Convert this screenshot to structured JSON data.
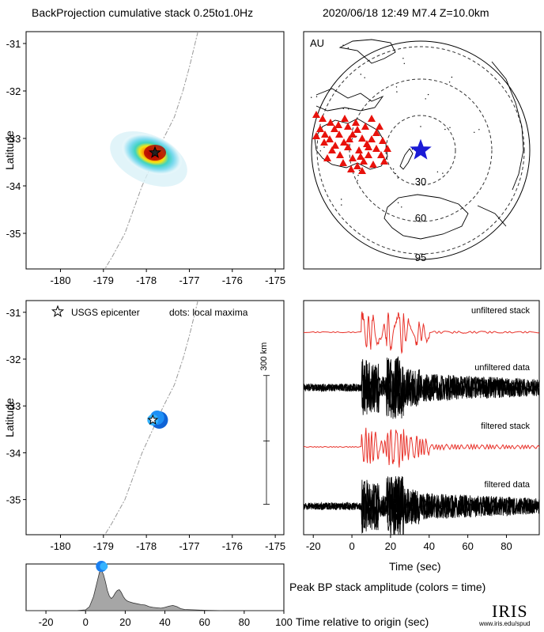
{
  "header": {
    "title": "BackProjection cumulative stack 0.25to1.0Hz",
    "event_info": "2020/06/18 12:49   M7.4   Z=10.0km"
  },
  "colors": {
    "stack_trace": "#e8322a",
    "data_trace": "#000000",
    "station": "#e8120c",
    "epicenter_map": "#1b1bd6",
    "maxima": "#1a7ff0",
    "area_fill": "#a6a6a6"
  },
  "chart_data": [
    {
      "type": "heatmap",
      "name": "cumulative-stack-map",
      "xlabel": "",
      "ylabel": "Latitude",
      "xlim": [
        -180.8,
        -174.8
      ],
      "ylim": [
        -35.75,
        -30.75
      ],
      "xticks": [
        "-180",
        "-179",
        "-178",
        "-177",
        "-176",
        "-175"
      ],
      "yticks": [
        "-31",
        "-32",
        "-33",
        "-34",
        "-35"
      ],
      "peak": {
        "lon": -177.8,
        "lat": -33.3
      },
      "epicenter": {
        "lon": -177.8,
        "lat": -33.3
      }
    },
    {
      "type": "scatter",
      "name": "station-map",
      "network": "AU",
      "ring_labels": [
        "30",
        "60",
        "95"
      ],
      "ring_distances_deg": [
        30,
        60,
        95
      ],
      "stations_count_visible": 46
    },
    {
      "type": "scatter",
      "name": "local-maxima-map",
      "ylabel": "Latitude",
      "xlim": [
        -180.8,
        -174.8
      ],
      "ylim": [
        -35.75,
        -30.75
      ],
      "xticks": [
        "-180",
        "-179",
        "-178",
        "-177",
        "-176",
        "-175"
      ],
      "yticks": [
        "-31",
        "-32",
        "-33",
        "-34",
        "-35"
      ],
      "legend_epicenter": "USGS epicenter",
      "legend_dots": "dots: local maxima",
      "scale_label": "300 km",
      "maxima": [
        {
          "lon": -177.85,
          "lat": -33.3,
          "t": 6
        },
        {
          "lon": -177.75,
          "lat": -33.25,
          "t": 10
        },
        {
          "lon": -177.7,
          "lat": -33.3,
          "t": 20
        }
      ]
    },
    {
      "type": "line",
      "name": "seismograms",
      "xlabel": "Time (sec)",
      "xlim": [
        -25,
        97
      ],
      "xticks": [
        "-20",
        "0",
        "20",
        "40",
        "60",
        "80"
      ],
      "traces": [
        "unfiltered stack",
        "unfiltered data",
        "filtered stack",
        "filtered data"
      ]
    },
    {
      "type": "area",
      "name": "peak-amplitude",
      "title": "Peak BP stack amplitude (colors = time)",
      "xlabel": "Time relative to origin (sec)",
      "xlim": [
        -30,
        100
      ],
      "xticks": [
        "-20",
        "0",
        "20",
        "40",
        "60",
        "80",
        "100"
      ],
      "x": [
        -30,
        -5,
        0,
        2,
        4,
        6,
        7,
        8,
        9,
        10,
        11,
        12,
        13,
        14,
        15,
        16,
        17,
        18,
        19,
        20,
        21,
        22,
        24,
        26,
        28,
        30,
        32,
        34,
        36,
        38,
        40,
        42,
        44,
        46,
        48,
        50,
        55,
        60,
        70,
        80,
        90,
        100
      ],
      "values": [
        0,
        0,
        0.02,
        0.1,
        0.35,
        0.75,
        0.95,
        1.0,
        0.9,
        0.72,
        0.5,
        0.36,
        0.3,
        0.35,
        0.44,
        0.5,
        0.52,
        0.45,
        0.35,
        0.28,
        0.24,
        0.22,
        0.19,
        0.17,
        0.15,
        0.14,
        0.1,
        0.08,
        0.07,
        0.06,
        0.08,
        0.11,
        0.13,
        0.1,
        0.05,
        0.03,
        0.02,
        0.01,
        0,
        0,
        0,
        0
      ],
      "peak_time": 8
    }
  ],
  "logo": {
    "text": "IRIS",
    "url_text": "www.iris.edu/spud"
  }
}
